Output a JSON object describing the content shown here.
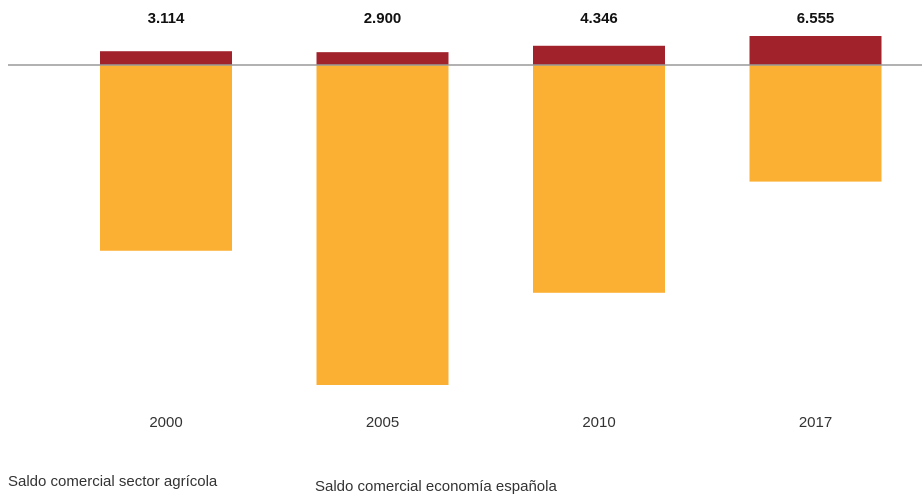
{
  "chart_data": {
    "type": "bar",
    "stacked": false,
    "categories": [
      "2000",
      "2005",
      "2010",
      "2017"
    ],
    "series": [
      {
        "name": "Saldo comercial sector agrícola",
        "values": [
          3114,
          2900,
          4346,
          6555
        ],
        "color": "#a1222b"
      },
      {
        "name": "Saldo comercial economía española",
        "values": [
          -68500,
          -118000,
          -84000,
          -43000
        ],
        "color": "#fbb034"
      }
    ],
    "value_labels": [
      "3.114",
      "2.900",
      "4.346",
      "6.555"
    ],
    "title": "",
    "xlabel": "",
    "ylabel": "",
    "ylim": [
      -120000,
      8000
    ],
    "grid": false,
    "zero_line_color": "#999999",
    "legend": {
      "placement": "bottom-left",
      "items": [
        "Saldo comercial sector agrícola",
        "Saldo comercial economía española"
      ]
    }
  }
}
